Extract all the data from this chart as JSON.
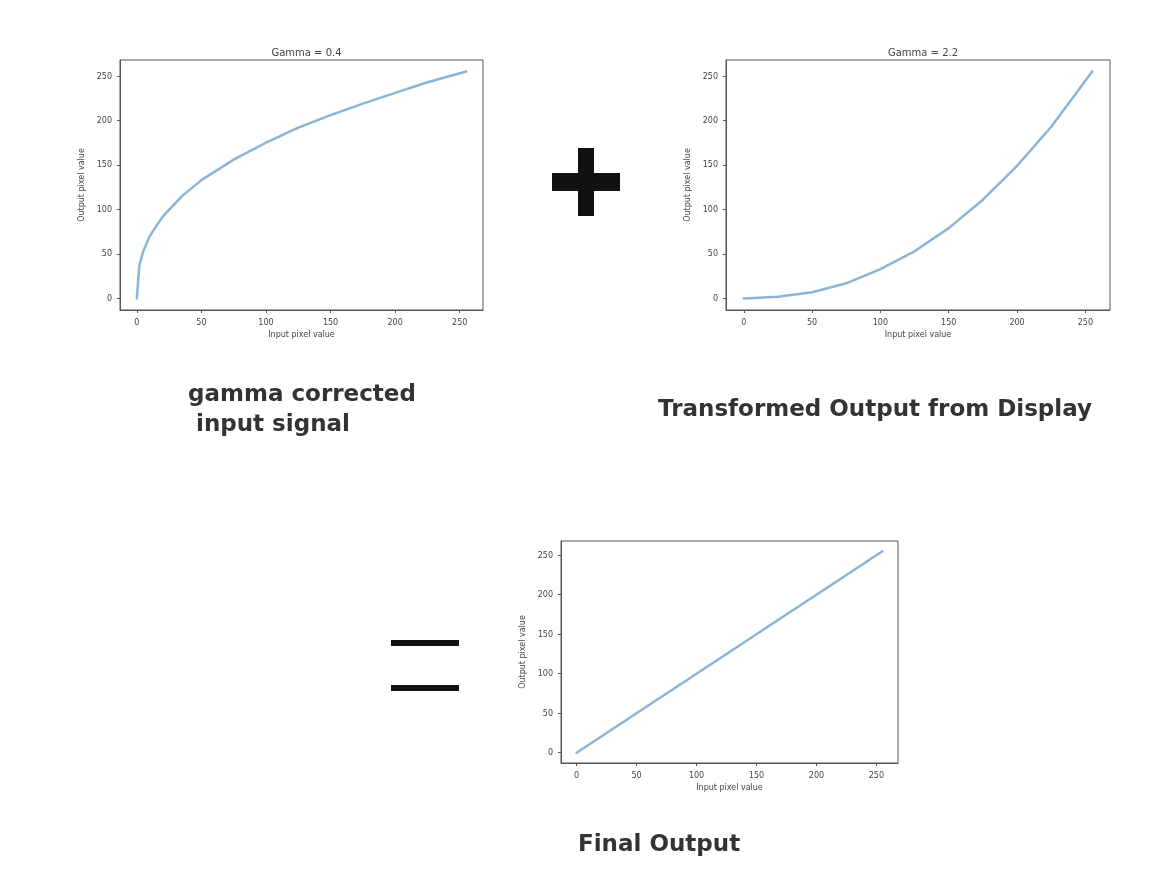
{
  "chart_data": [
    {
      "type": "line",
      "title": "Gamma = 0.4",
      "xlabel": "Input pixel value",
      "ylabel": "Output pixel value",
      "annotations": [
        "gamma corrected input signal"
      ],
      "xlim": [
        -13,
        268
      ],
      "ylim": [
        -13,
        268
      ],
      "xticks": [
        0,
        50,
        100,
        150,
        200,
        250
      ],
      "yticks": [
        0,
        50,
        100,
        150,
        200,
        250
      ],
      "grid": false,
      "series": [
        {
          "color": "#8ab4d8",
          "x": [
            0,
            2,
            5,
            10,
            20,
            35,
            50,
            75,
            100,
            125,
            150,
            175,
            200,
            225,
            255
          ],
          "values": [
            0,
            37,
            53,
            70,
            92,
            115,
            133,
            156,
            175,
            192,
            206,
            219,
            231,
            243,
            255
          ]
        }
      ]
    },
    {
      "type": "line",
      "title": "Gamma = 2.2",
      "xlabel": "Input pixel value",
      "ylabel": "Output pixel value",
      "annotations": [
        "Transformed Output from Display"
      ],
      "xlim": [
        -13,
        268
      ],
      "ylim": [
        -13,
        268
      ],
      "xticks": [
        0,
        50,
        100,
        150,
        200,
        250
      ],
      "yticks": [
        0,
        50,
        100,
        150,
        200,
        250
      ],
      "grid": false,
      "series": [
        {
          "color": "#8ab4d8",
          "x": [
            0,
            25,
            50,
            75,
            100,
            125,
            150,
            175,
            200,
            225,
            255
          ],
          "values": [
            0,
            2,
            7,
            17,
            33,
            53,
            79,
            111,
            149,
            193,
            255
          ]
        }
      ]
    },
    {
      "type": "line",
      "xlabel": "Input pixel value",
      "ylabel": "Output pixel value",
      "annotations": [
        "Final Output"
      ],
      "xlim": [
        -13,
        268
      ],
      "ylim": [
        -13,
        268
      ],
      "xticks": [
        0,
        50,
        100,
        150,
        200,
        250
      ],
      "yticks": [
        0,
        50,
        100,
        150,
        200,
        250
      ],
      "grid": false,
      "series": [
        {
          "color": "#8ab4d8",
          "x": [
            0,
            50,
            100,
            150,
            200,
            255
          ],
          "values": [
            0,
            50,
            100,
            150,
            200,
            255
          ]
        }
      ]
    }
  ]
}
